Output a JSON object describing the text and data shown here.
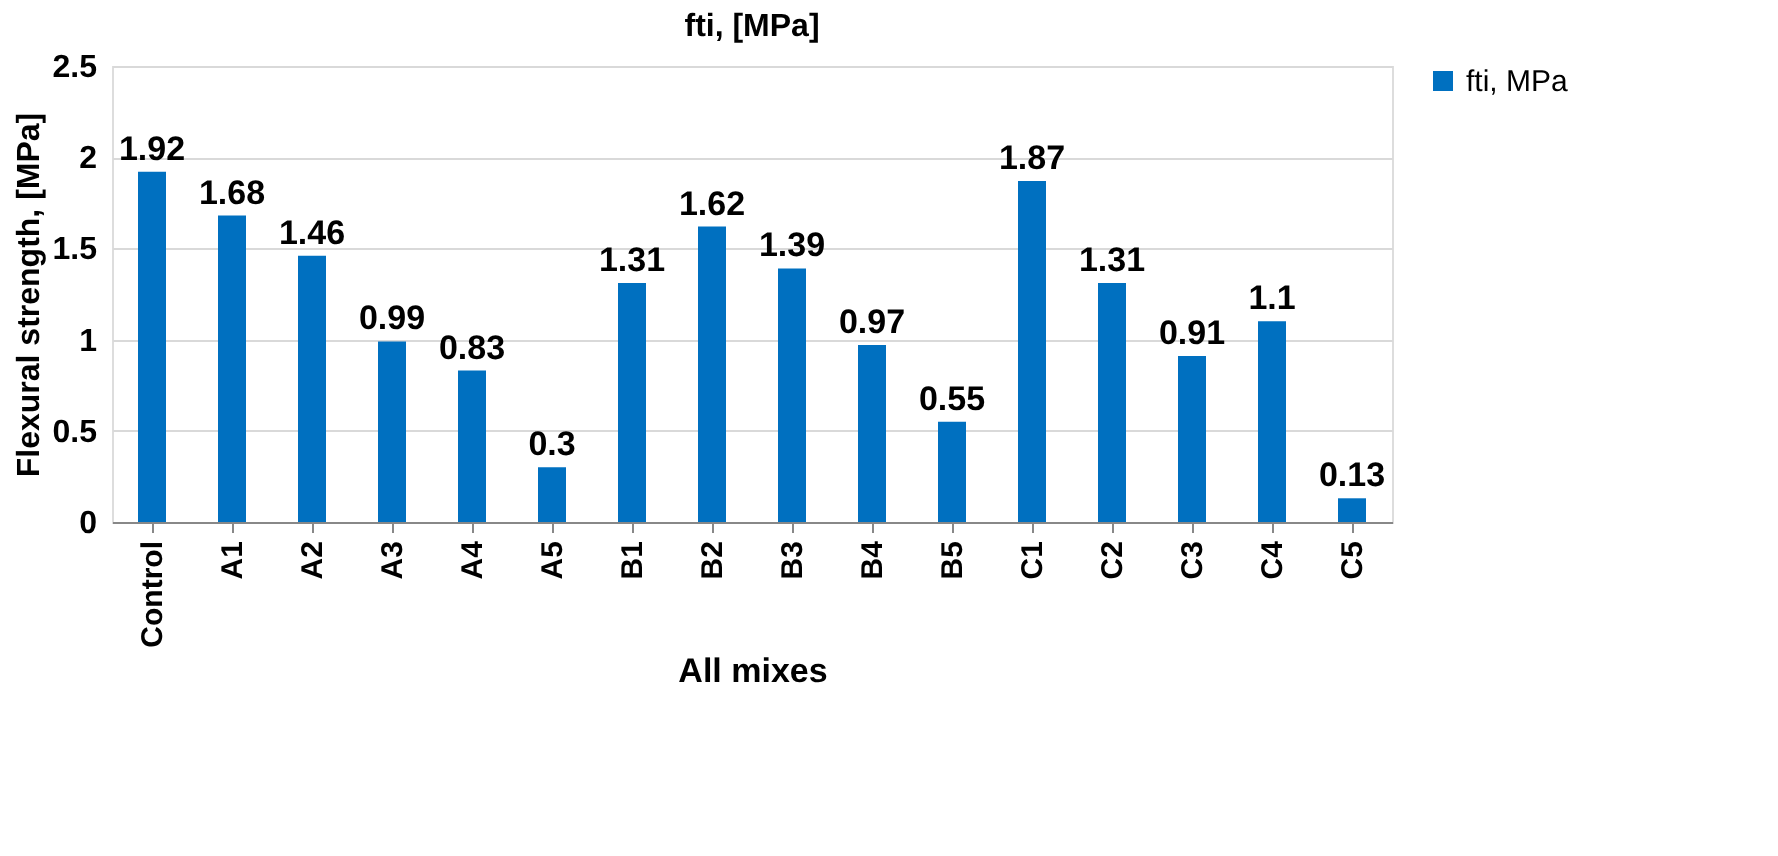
{
  "chart_data": {
    "type": "bar",
    "title": "fti, [MPa]",
    "xlabel": "All mixes",
    "ylabel": "Flexural strength, [MPa]",
    "categories": [
      "Control",
      "A1",
      "A2",
      "A3",
      "A4",
      "A5",
      "B1",
      "B2",
      "B3",
      "B4",
      "B5",
      "C1",
      "C2",
      "C3",
      "C4",
      "C5"
    ],
    "series": [
      {
        "name": "fti, MPa",
        "color": "#0070c0",
        "values": [
          1.92,
          1.68,
          1.46,
          0.99,
          0.83,
          0.3,
          1.31,
          1.62,
          1.39,
          0.97,
          0.55,
          1.87,
          1.31,
          0.91,
          1.1,
          0.13
        ]
      }
    ],
    "ylim": [
      0,
      2.5
    ],
    "yticks": [
      0,
      0.5,
      1,
      1.5,
      2,
      2.5
    ],
    "grid": "y",
    "legend": "right",
    "data_labels": true
  }
}
